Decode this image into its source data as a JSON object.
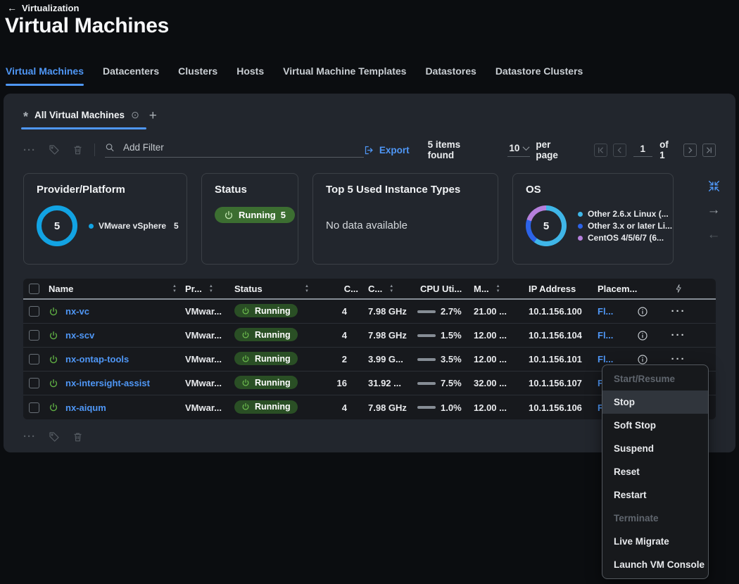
{
  "header": {
    "breadcrumb": "Virtualization",
    "title": "Virtual Machines"
  },
  "tabs": [
    {
      "label": "Virtual Machines",
      "active": true
    },
    {
      "label": "Datacenters",
      "active": false
    },
    {
      "label": "Clusters",
      "active": false
    },
    {
      "label": "Hosts",
      "active": false
    },
    {
      "label": "Virtual Machine Templates",
      "active": false
    },
    {
      "label": "Datastores",
      "active": false
    },
    {
      "label": "Datastore Clusters",
      "active": false
    }
  ],
  "view_tab": {
    "label": "All Virtual Machines"
  },
  "toolbar": {
    "filter_placeholder": "Add Filter",
    "export_label": "Export",
    "items_found": "5 items found",
    "per_page_value": "10",
    "per_page_label": "per page",
    "page": "1",
    "page_of": "of 1"
  },
  "accent_colors": {
    "link_blue": "#4f97f6",
    "running_green": "#6fbf50",
    "donut_blue": "#12a3e3"
  },
  "icons": [
    "back-arrow",
    "star",
    "view-options",
    "add-view",
    "more-ellipsis",
    "tag",
    "trash",
    "search",
    "export",
    "chevron-down",
    "page-first",
    "page-prev",
    "page-next",
    "page-last",
    "collapse-widgets",
    "carousel-next",
    "carousel-prev",
    "power",
    "sort",
    "lightning",
    "info",
    "row-menu-ellipsis"
  ],
  "cards": {
    "provider": {
      "title": "Provider/Platform",
      "total": "5",
      "legend": [
        {
          "label": "VMware vSphere",
          "count": "5",
          "color": "#12a3e3"
        }
      ]
    },
    "status": {
      "title": "Status",
      "badge_label": "Running",
      "badge_count": "5"
    },
    "instance_types": {
      "title": "Top 5 Used Instance Types",
      "empty": "No data available"
    },
    "os": {
      "title": "OS",
      "total": "5",
      "segments": [
        {
          "color": "#3fb6e8",
          "pct": 60
        },
        {
          "color": "#2c63e8",
          "pct": 20
        },
        {
          "color": "#b57fdc",
          "pct": 20
        }
      ],
      "legend": [
        {
          "label": "Other 2.6.x Linux (...",
          "color": "#3fb6e8"
        },
        {
          "label": "Other 3.x or later Li...",
          "color": "#2c63e8"
        },
        {
          "label": "CentOS 4/5/6/7 (6...",
          "color": "#b57fdc"
        }
      ]
    }
  },
  "table": {
    "columns": {
      "name": "Name",
      "provider": "Pr...",
      "status": "Status",
      "cpu": "C...",
      "capacity": "C...",
      "cpu_util": "CPU Uti...",
      "memory": "M...",
      "ip": "IP Address",
      "placement": "Placem..."
    },
    "rows": [
      {
        "name": "nx-vc",
        "provider": "VMwar...",
        "status": "Running",
        "cpu": "4",
        "capacity": "7.98 GHz",
        "util": "2.7%",
        "memory": "21.00 ...",
        "ip": "10.1.156.100",
        "placement": "Fl..."
      },
      {
        "name": "nx-scv",
        "provider": "VMwar...",
        "status": "Running",
        "cpu": "4",
        "capacity": "7.98 GHz",
        "util": "1.5%",
        "memory": "12.00 ...",
        "ip": "10.1.156.104",
        "placement": "Fl..."
      },
      {
        "name": "nx-ontap-tools",
        "provider": "VMwar...",
        "status": "Running",
        "cpu": "2",
        "capacity": "3.99 G...",
        "util": "3.5%",
        "memory": "12.00 ...",
        "ip": "10.1.156.101",
        "placement": "Fl..."
      },
      {
        "name": "nx-intersight-assist",
        "provider": "VMwar...",
        "status": "Running",
        "cpu": "16",
        "capacity": "31.92 ...",
        "util": "7.5%",
        "memory": "32.00 ...",
        "ip": "10.1.156.107",
        "placement": "Fl..."
      },
      {
        "name": "nx-aiqum",
        "provider": "VMwar...",
        "status": "Running",
        "cpu": "4",
        "capacity": "7.98 GHz",
        "util": "1.0%",
        "memory": "12.00 ...",
        "ip": "10.1.156.106",
        "placement": "Fl..."
      }
    ]
  },
  "context_menu": {
    "items": [
      {
        "label": "Start/Resume",
        "disabled": true,
        "highlighted": false
      },
      {
        "label": "Stop",
        "disabled": false,
        "highlighted": true
      },
      {
        "label": "Soft Stop",
        "disabled": false,
        "highlighted": false
      },
      {
        "label": "Suspend",
        "disabled": false,
        "highlighted": false
      },
      {
        "label": "Reset",
        "disabled": false,
        "highlighted": false
      },
      {
        "label": "Restart",
        "disabled": false,
        "highlighted": false
      },
      {
        "label": "Terminate",
        "disabled": true,
        "highlighted": false
      },
      {
        "label": "Live Migrate",
        "disabled": false,
        "highlighted": false
      },
      {
        "label": "Launch VM Console",
        "disabled": false,
        "highlighted": false
      }
    ]
  }
}
